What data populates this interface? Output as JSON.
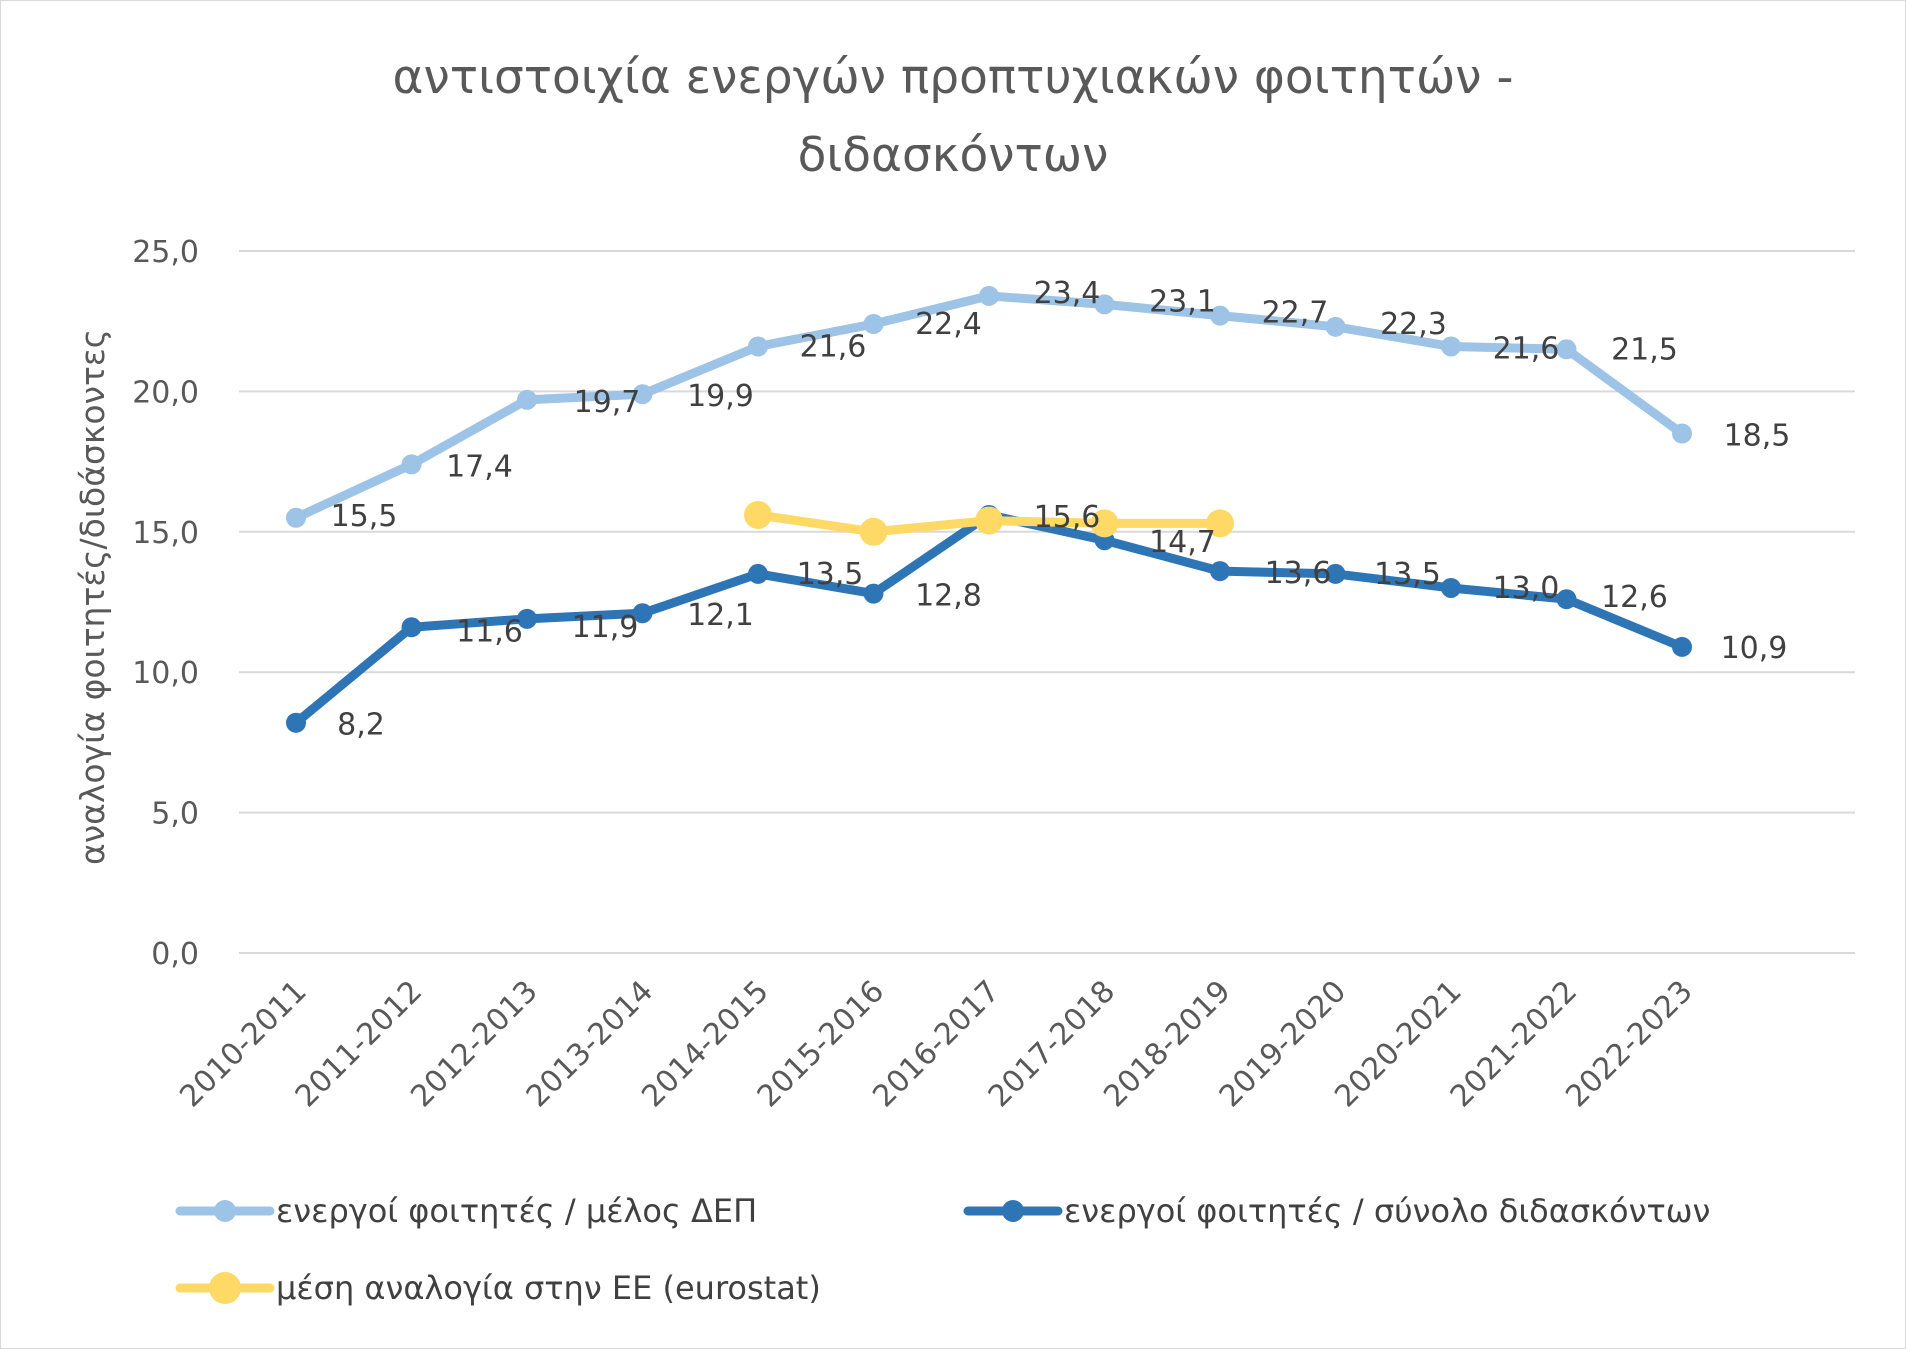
{
  "chart_data": {
    "type": "line",
    "title_line1": "αντιστοιχία ενεργών προπτυχιακών φοιτητών -",
    "title_line2": "διδασκόντων",
    "ylabel": "αναλογία φοιτητές/διδάσκοντες",
    "xlabel": "",
    "ylim": [
      0,
      25
    ],
    "ytick_values": [
      0,
      5,
      10,
      15,
      20,
      25
    ],
    "ytick_labels": [
      "0,0",
      "5,0",
      "10,0",
      "15,0",
      "20,0",
      "25,0"
    ],
    "grid": true,
    "legend_position": "bottom",
    "categories": [
      "2010-2011",
      "2011-2012",
      "2012-2013",
      "2013-2014",
      "2014-2015",
      "2015-2016",
      "2016-2017",
      "2017-2018",
      "2018-2019",
      "2019-2020",
      "2020-2021",
      "2021-2022",
      "2022-2023"
    ],
    "series": [
      {
        "name": "ενεργοί φοιτητές / μέλος ΔΕΠ",
        "color": "#9dc3e6",
        "values": [
          15.5,
          17.4,
          19.7,
          19.9,
          21.6,
          22.4,
          23.4,
          23.1,
          22.7,
          22.3,
          21.6,
          21.5,
          18.5
        ],
        "labels": [
          "15,5",
          "17,4",
          "19,7",
          "19,9",
          "21,6",
          "22,4",
          "23,4",
          "23,1",
          "22,7",
          "22,3",
          "21,6",
          "21,5",
          "18,5"
        ]
      },
      {
        "name": "ενεργοί φοιτητές / σύνολο διδασκόντων",
        "color": "#2e75b6",
        "values": [
          8.2,
          11.6,
          11.9,
          12.1,
          13.5,
          12.8,
          15.6,
          14.7,
          13.6,
          13.5,
          13.0,
          12.6,
          10.9
        ],
        "labels": [
          "8,2",
          "11,6",
          "11,9",
          "12,1",
          "13,5",
          "12,8",
          "15,6",
          "14,7",
          "13,6",
          "13,5",
          "13,0",
          "12,6",
          "10,9"
        ]
      },
      {
        "name": "μέση αναλογία στην ΕΕ (eurostat)",
        "color": "#ffd966",
        "values": [
          null,
          null,
          null,
          null,
          15.6,
          15.0,
          15.4,
          15.3,
          15.3,
          null,
          null,
          null,
          null
        ],
        "labels": []
      }
    ]
  }
}
